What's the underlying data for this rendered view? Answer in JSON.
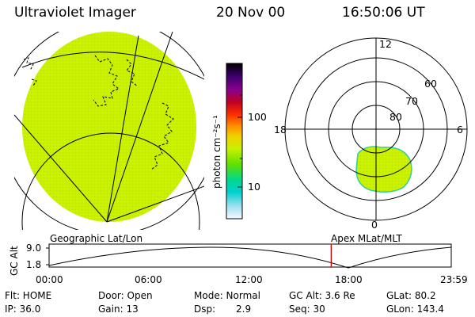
{
  "header": {
    "title": "Ultraviolet Imager",
    "date": "20 Nov 00",
    "time": "16:50:06 UT"
  },
  "colorbar": {
    "unit_label": "photon cm⁻²s⁻¹",
    "ticks": [
      "100",
      "10"
    ],
    "colors": [
      "#000000",
      "#2a0050",
      "#6a00a0",
      "#a00040",
      "#e00000",
      "#ff5000",
      "#ff9a00",
      "#f0e000",
      "#b8f000",
      "#50e000",
      "#00e080",
      "#00d0d0",
      "#a0e0f0",
      "#ffffff"
    ]
  },
  "polar_plot": {
    "mlt_labels": [
      "12",
      "18",
      "6",
      "0"
    ],
    "mlat_labels": [
      "60",
      "70",
      "80"
    ]
  },
  "timeline": {
    "ylabel": "GC Alt",
    "y_ticks": [
      "9.0",
      "1.8"
    ],
    "left_caption": "Geographic Lat/Lon",
    "right_caption": "Apex MLat/MLT",
    "x_ticks": [
      "00:00",
      "06:00",
      "12:00",
      "18:00",
      "23:59"
    ],
    "current_time_hours": 16.835
  },
  "info": {
    "flt": "Flt: HOME",
    "ip": "IP: 36.0",
    "door": "Door: Open",
    "gain": "Gain: 13",
    "mode": "Mode: Normal",
    "dsp_label": "Dsp:",
    "dsp_value": "2.9",
    "gcalt": "GC Alt: 3.6 Re",
    "seq": "Seq: 30",
    "glat": "GLat: 80.2",
    "glon": "GLon: 143.4"
  },
  "colors": {
    "emission": "#c8f000",
    "emission_edge": "#30d0a0"
  }
}
